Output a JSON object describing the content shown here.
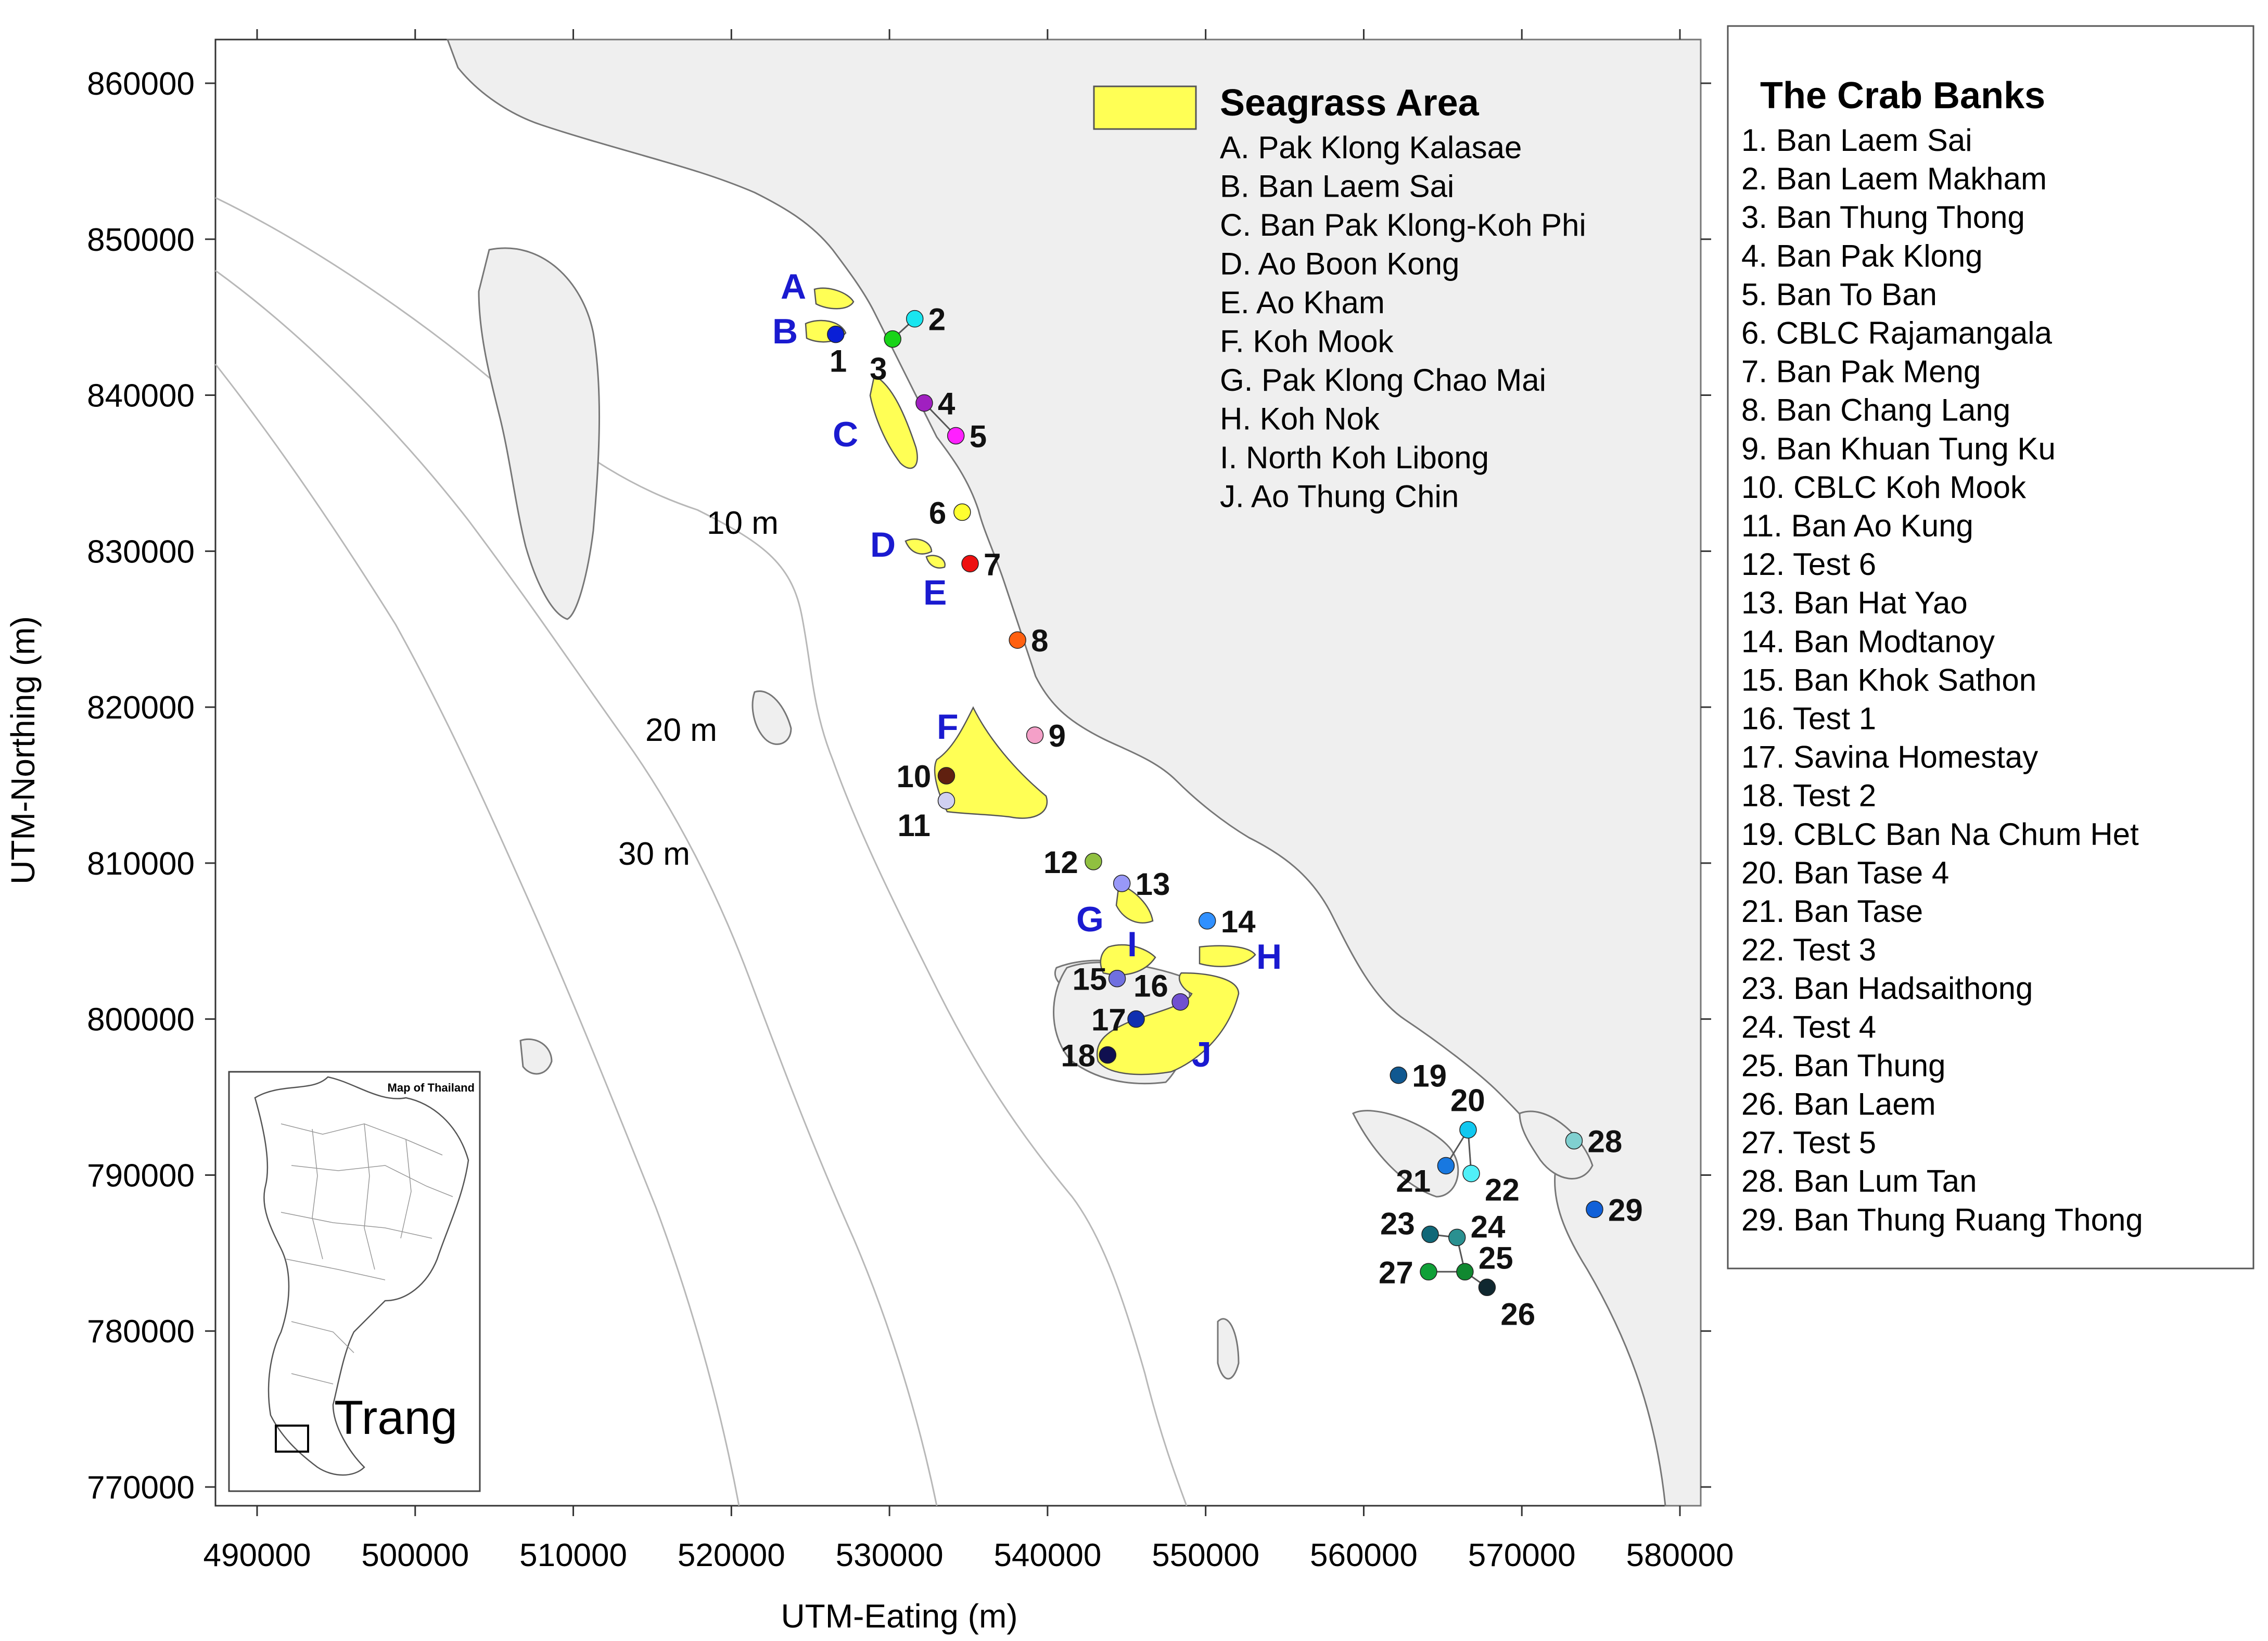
{
  "axes": {
    "x_title": "UTM-Eating (m)",
    "y_title": "UTM-Northing (m)",
    "x_ticks": [
      "490000",
      "500000",
      "510000",
      "520000",
      "530000",
      "540000",
      "550000",
      "560000",
      "570000",
      "580000"
    ],
    "y_ticks": [
      "860000",
      "850000",
      "840000",
      "830000",
      "820000",
      "810000",
      "800000",
      "790000",
      "780000",
      "770000"
    ]
  },
  "depth_contours": [
    "10 m",
    "20 m",
    "30 m"
  ],
  "seagrass_legend": {
    "title": "Seagrass Area",
    "items": [
      "A. Pak Klong Kalasae",
      "B. Ban Laem Sai",
      "C. Ban Pak Klong-Koh Phi",
      "D. Ao Boon Kong",
      "E. Ao Kham",
      "F. Koh Mook",
      "G. Pak Klong Chao Mai",
      "H. Koh Nok",
      "I. North Koh Libong",
      "J. Ao Thung Chin"
    ],
    "fill_color": "#ffff55"
  },
  "crab_banks_legend": {
    "title": "The Crab Banks",
    "items": [
      "1. Ban Laem Sai",
      "2. Ban Laem Makham",
      "3. Ban Thung Thong",
      "4. Ban Pak Klong",
      "5. Ban To Ban",
      "6. CBLC Rajamangala",
      "7. Ban Pak Meng",
      "8. Ban Chang Lang",
      "9. Ban Khuan Tung Ku",
      "10. CBLC Koh Mook",
      "11. Ban Ao Kung",
      "12. Test 6",
      "13. Ban Hat Yao",
      "14. Ban Modtanoy",
      "15. Ban Khok Sathon",
      "16. Test 1",
      "17. Savina Homestay",
      "18. Test 2",
      "19. CBLC Ban Na Chum Het",
      "20. Ban Tase 4",
      "21. Ban Tase",
      "22. Test 3",
      "23. Ban Hadsaithong",
      "24. Test 4",
      "25. Ban Thung",
      "26. Ban Laem",
      "27. Test 5",
      "28. Ban Lum Tan",
      "29. Ban Thung Ruang Thong"
    ]
  },
  "seagrass_labels": [
    "A",
    "B",
    "C",
    "D",
    "E",
    "F",
    "G",
    "H",
    "I",
    "J"
  ],
  "sites": [
    {
      "n": "1",
      "e": 526600,
      "no": 843900,
      "color": "#0a1fd6"
    },
    {
      "n": "2",
      "e": 531600,
      "no": 844900,
      "color": "#19e6f0"
    },
    {
      "n": "3",
      "e": 530200,
      "no": 843600,
      "color": "#19d419"
    },
    {
      "n": "4",
      "e": 532200,
      "no": 839500,
      "color": "#a020c0"
    },
    {
      "n": "5",
      "e": 534200,
      "no": 837400,
      "color": "#ff20ff"
    },
    {
      "n": "6",
      "e": 534600,
      "no": 832500,
      "color": "#ffff30"
    },
    {
      "n": "7",
      "e": 535100,
      "no": 829200,
      "color": "#ee1010"
    },
    {
      "n": "8",
      "e": 538100,
      "no": 824300,
      "color": "#ff6010"
    },
    {
      "n": "9",
      "e": 539200,
      "no": 818200,
      "color": "#f4a0c8"
    },
    {
      "n": "10",
      "e": 533600,
      "no": 815600,
      "color": "#602010"
    },
    {
      "n": "11",
      "e": 533600,
      "no": 814000,
      "color": "#d0d0f0"
    },
    {
      "n": "12",
      "e": 542900,
      "no": 810100,
      "color": "#90c040"
    },
    {
      "n": "13",
      "e": 544700,
      "no": 808700,
      "color": "#9898f8"
    },
    {
      "n": "14",
      "e": 550100,
      "no": 806300,
      "color": "#3090ff"
    },
    {
      "n": "15",
      "e": 544400,
      "no": 802600,
      "color": "#7070e0"
    },
    {
      "n": "16",
      "e": 548400,
      "no": 801100,
      "color": "#7050d0"
    },
    {
      "n": "17",
      "e": 545600,
      "no": 800000,
      "color": "#1030b0"
    },
    {
      "n": "18",
      "e": 543800,
      "no": 797700,
      "color": "#101050"
    },
    {
      "n": "19",
      "e": 562200,
      "no": 796400,
      "color": "#105890"
    },
    {
      "n": "20",
      "e": 566600,
      "no": 792900,
      "color": "#10c8f0"
    },
    {
      "n": "21",
      "e": 565200,
      "no": 790600,
      "color": "#1878e0"
    },
    {
      "n": "22",
      "e": 566800,
      "no": 790100,
      "color": "#50f0f8"
    },
    {
      "n": "23",
      "e": 564200,
      "no": 786200,
      "color": "#106878"
    },
    {
      "n": "24",
      "e": 565900,
      "no": 786000,
      "color": "#2a9090"
    },
    {
      "n": "25",
      "e": 566400,
      "no": 783800,
      "color": "#108830"
    },
    {
      "n": "26",
      "e": 567800,
      "no": 782800,
      "color": "#102830"
    },
    {
      "n": "27",
      "e": 564100,
      "no": 783800,
      "color": "#10a038"
    },
    {
      "n": "28",
      "e": 573300,
      "no": 792200,
      "color": "#80d0d0"
    },
    {
      "n": "29",
      "e": 574600,
      "no": 787800,
      "color": "#1060d8"
    }
  ],
  "inset": {
    "title": "Map of Thailand",
    "region_label": "Trang"
  }
}
